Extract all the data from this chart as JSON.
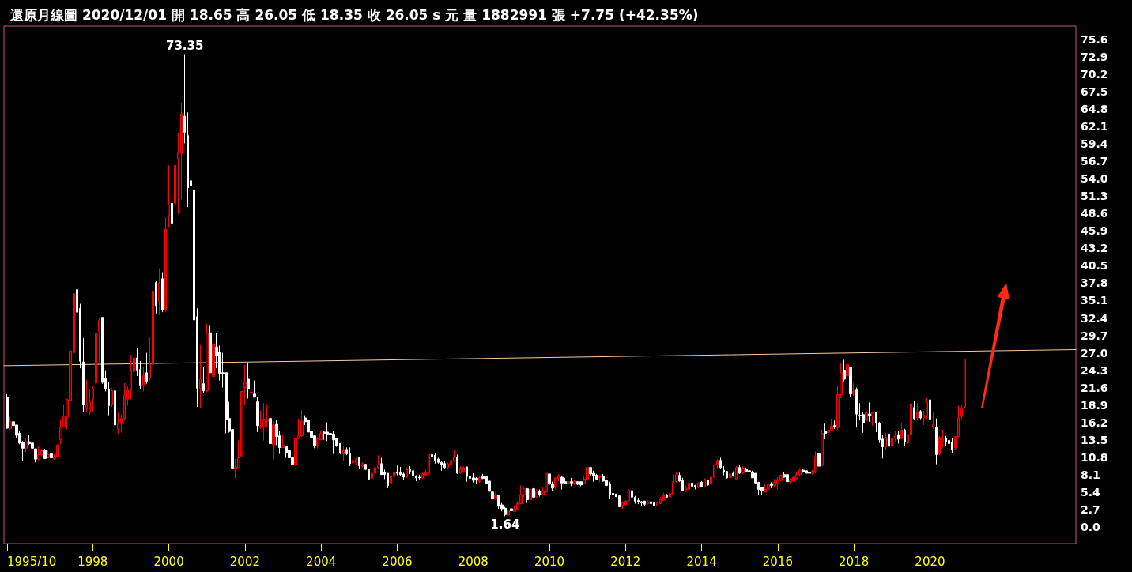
{
  "chart_data": {
    "type": "candlestick",
    "title": "還原月線圖 2020/12/01 開 18.65 高 26.05 低 18.35 收 26.05 s 元 量 1882991 張 +7.75 (+42.35%)",
    "x": [
      "1995-10",
      "1995-11",
      "1995-12",
      "1996-01",
      "1996-02",
      "1996-03",
      "1996-04",
      "1996-05",
      "1996-06",
      "1996-07",
      "1996-08",
      "1996-09",
      "1996-10",
      "1996-11",
      "1996-12",
      "1997-01",
      "1997-02",
      "1997-03",
      "1997-04",
      "1997-05",
      "1997-06",
      "1997-07",
      "1997-08",
      "1997-09",
      "1997-10",
      "1997-11",
      "1997-12",
      "1998-01",
      "1998-02",
      "1998-03",
      "1998-04",
      "1998-05",
      "1998-06",
      "1998-07",
      "1998-08",
      "1998-09",
      "1998-10",
      "1998-11",
      "1998-12",
      "1999-01",
      "1999-02",
      "1999-03",
      "1999-04",
      "1999-05",
      "1999-06",
      "1999-07",
      "1999-08",
      "1999-09",
      "1999-10",
      "1999-11",
      "1999-12",
      "2000-01",
      "2000-02",
      "2000-03",
      "2000-04",
      "2000-05",
      "2000-06",
      "2000-07",
      "2000-08",
      "2000-09",
      "2000-10",
      "2000-11",
      "2000-12",
      "2001-01",
      "2001-02",
      "2001-03",
      "2001-04",
      "2001-05",
      "2001-06",
      "2001-07",
      "2001-08",
      "2001-09",
      "2001-10",
      "2001-11",
      "2001-12",
      "2002-01",
      "2002-02",
      "2002-03",
      "2002-04",
      "2002-05",
      "2002-06",
      "2002-07",
      "2002-08",
      "2002-09",
      "2002-10",
      "2002-11",
      "2002-12",
      "2003-01",
      "2003-02",
      "2003-03",
      "2003-04",
      "2003-05",
      "2003-06",
      "2003-07",
      "2003-08",
      "2003-09",
      "2003-10",
      "2003-11",
      "2003-12",
      "2004-01",
      "2004-02",
      "2004-03",
      "2004-04",
      "2004-05",
      "2004-06",
      "2004-07",
      "2004-08",
      "2004-09",
      "2004-10",
      "2004-11",
      "2004-12",
      "2005-01",
      "2005-02",
      "2005-03",
      "2005-04",
      "2005-05",
      "2005-06",
      "2005-07",
      "2005-08",
      "2005-09",
      "2005-10",
      "2005-11",
      "2005-12",
      "2006-01",
      "2006-02",
      "2006-03",
      "2006-04",
      "2006-05",
      "2006-06",
      "2006-07",
      "2006-08",
      "2006-09",
      "2006-10",
      "2006-11",
      "2006-12",
      "2007-01",
      "2007-02",
      "2007-03",
      "2007-04",
      "2007-05",
      "2007-06",
      "2007-07",
      "2007-08",
      "2007-09",
      "2007-10",
      "2007-11",
      "2007-12",
      "2008-01",
      "2008-02",
      "2008-03",
      "2008-04",
      "2008-05",
      "2008-06",
      "2008-07",
      "2008-08",
      "2008-09",
      "2008-10",
      "2008-11",
      "2008-12",
      "2009-01",
      "2009-02",
      "2009-03",
      "2009-04",
      "2009-05",
      "2009-06",
      "2009-07",
      "2009-08",
      "2009-09",
      "2009-10",
      "2009-11",
      "2009-12",
      "2010-01",
      "2010-02",
      "2010-03",
      "2010-04",
      "2010-05",
      "2010-06",
      "2010-07",
      "2010-08",
      "2010-09",
      "2010-10",
      "2010-11",
      "2010-12",
      "2011-01",
      "2011-02",
      "2011-03",
      "2011-04",
      "2011-05",
      "2011-06",
      "2011-07",
      "2011-08",
      "2011-09",
      "2011-10",
      "2011-11",
      "2011-12",
      "2012-01",
      "2012-02",
      "2012-03",
      "2012-04",
      "2012-05",
      "2012-06",
      "2012-07",
      "2012-08",
      "2012-09",
      "2012-10",
      "2012-11",
      "2012-12",
      "2013-01",
      "2013-02",
      "2013-03",
      "2013-04",
      "2013-05",
      "2013-06",
      "2013-07",
      "2013-08",
      "2013-09",
      "2013-10",
      "2013-11",
      "2013-12",
      "2014-01",
      "2014-02",
      "2014-03",
      "2014-04",
      "2014-05",
      "2014-06",
      "2014-07",
      "2014-08",
      "2014-09",
      "2014-10",
      "2014-11",
      "2014-12",
      "2015-01",
      "2015-02",
      "2015-03",
      "2015-04",
      "2015-05",
      "2015-06",
      "2015-07",
      "2015-08",
      "2015-09",
      "2015-10",
      "2015-11",
      "2015-12",
      "2016-01",
      "2016-02",
      "2016-03",
      "2016-04",
      "2016-05",
      "2016-06",
      "2016-07",
      "2016-08",
      "2016-09",
      "2016-10",
      "2016-11",
      "2016-12",
      "2017-01",
      "2017-02",
      "2017-03",
      "2017-04",
      "2017-05",
      "2017-06",
      "2017-07",
      "2017-08",
      "2017-09",
      "2017-10",
      "2017-11",
      "2017-12",
      "2018-01",
      "2018-02",
      "2018-03",
      "2018-04",
      "2018-05",
      "2018-06",
      "2018-07",
      "2018-08",
      "2018-09",
      "2018-10",
      "2018-11",
      "2018-12",
      "2019-01",
      "2019-02",
      "2019-03",
      "2019-04",
      "2019-05",
      "2019-06",
      "2019-07",
      "2019-08",
      "2019-09",
      "2019-10",
      "2019-11",
      "2019-12",
      "2020-01",
      "2020-02",
      "2020-03",
      "2020-04",
      "2020-05",
      "2020-06",
      "2020-07",
      "2020-08",
      "2020-09",
      "2020-10",
      "2020-11",
      "2020-12"
    ],
    "ohlc": [
      [
        20.1,
        20.6,
        15.2,
        15.3
      ],
      [
        15.2,
        17.1,
        15.1,
        16.3
      ],
      [
        16.3,
        16.5,
        15.4,
        15.7
      ],
      [
        15.8,
        15.8,
        13.7,
        14.2
      ],
      [
        14.5,
        14.8,
        12.8,
        13.0
      ],
      [
        13.1,
        13.3,
        10.2,
        12.2
      ],
      [
        12.2,
        13.7,
        11.6,
        13.2
      ],
      [
        13.2,
        14.3,
        12.7,
        12.9
      ],
      [
        13.0,
        13.6,
        12.1,
        12.2
      ],
      [
        12.1,
        12.1,
        10.0,
        10.5
      ],
      [
        10.5,
        12.5,
        10.3,
        11.2
      ],
      [
        11.2,
        12.1,
        10.9,
        11.8
      ],
      [
        11.9,
        12.1,
        10.5,
        10.6
      ],
      [
        10.7,
        12.0,
        10.7,
        11.2
      ],
      [
        11.3,
        11.4,
        10.7,
        10.7
      ],
      [
        10.6,
        11.3,
        10.4,
        10.9
      ],
      [
        10.9,
        12.8,
        10.8,
        12.7
      ],
      [
        13.5,
        16.7,
        12.8,
        15.4
      ],
      [
        15.6,
        19.0,
        15.4,
        17.2
      ],
      [
        17.0,
        19.9,
        15.1,
        19.7
      ],
      [
        19.6,
        30.7,
        19.4,
        27.3
      ],
      [
        27.0,
        38.2,
        24.8,
        36.2
      ],
      [
        36.8,
        40.7,
        31.6,
        33.3
      ],
      [
        33.9,
        34.6,
        24.6,
        25.7
      ],
      [
        25.6,
        29.3,
        17.8,
        18.9
      ],
      [
        18.3,
        22.8,
        17.8,
        19.0
      ],
      [
        17.7,
        21.4,
        17.4,
        19.4
      ],
      [
        19.8,
        21.8,
        17.9,
        21.4
      ],
      [
        22.3,
        31.8,
        22.1,
        30.0
      ],
      [
        30.3,
        32.5,
        25.4,
        32.0
      ],
      [
        32.5,
        32.5,
        22.2,
        22.4
      ],
      [
        23.0,
        24.3,
        21.0,
        21.4
      ],
      [
        21.4,
        22.4,
        17.3,
        18.8
      ],
      [
        19.0,
        21.5,
        18.6,
        21.1
      ],
      [
        21.1,
        21.8,
        15.8,
        15.8
      ],
      [
        15.2,
        17.9,
        14.5,
        16.1
      ],
      [
        16.0,
        17.4,
        14.6,
        16.8
      ],
      [
        16.8,
        22.3,
        16.7,
        20.4
      ],
      [
        19.8,
        21.9,
        18.8,
        21.2
      ],
      [
        21.2,
        26.7,
        19.8,
        24.3
      ],
      [
        24.1,
        26.7,
        22.1,
        26.2
      ],
      [
        26.2,
        27.7,
        23.4,
        24.3
      ],
      [
        24.4,
        25.7,
        21.4,
        22.0
      ],
      [
        22.0,
        24.9,
        21.0,
        23.5
      ],
      [
        23.9,
        27.0,
        22.2,
        22.6
      ],
      [
        23.0,
        29.4,
        22.7,
        25.2
      ],
      [
        25.2,
        38.5,
        24.1,
        36.6
      ],
      [
        37.9,
        38.1,
        33.1,
        34.3
      ],
      [
        35.0,
        40.1,
        32.8,
        37.8
      ],
      [
        38.5,
        39.5,
        33.3,
        33.7
      ],
      [
        33.7,
        48.0,
        33.3,
        46.2
      ],
      [
        48.3,
        56.1,
        46.5,
        50.0
      ],
      [
        50.2,
        51.8,
        43.3,
        47.1
      ],
      [
        50.2,
        60.5,
        42.7,
        56.1
      ],
      [
        57.1,
        61.2,
        48.6,
        58.0
      ],
      [
        57.9,
        65.8,
        50.8,
        64.1
      ],
      [
        63.7,
        73.35,
        59.5,
        61.2
      ],
      [
        60.7,
        64.3,
        49.6,
        52.6
      ],
      [
        53.7,
        62.0,
        48.0,
        52.9
      ],
      [
        52.3,
        52.7,
        30.7,
        32.1
      ],
      [
        32.6,
        33.9,
        18.6,
        21.5
      ],
      [
        21.5,
        28.2,
        18.5,
        22.9
      ],
      [
        22.2,
        24.8,
        20.7,
        21.1
      ],
      [
        21.1,
        31.5,
        20.9,
        30.1
      ],
      [
        30.1,
        31.3,
        23.9,
        23.9
      ],
      [
        23.3,
        30.7,
        22.7,
        28.3
      ],
      [
        27.9,
        30.1,
        24.6,
        26.5
      ],
      [
        27.1,
        28.1,
        22.7,
        23.8
      ],
      [
        23.9,
        27.0,
        21.6,
        23.7
      ],
      [
        23.9,
        23.9,
        14.5,
        16.7
      ],
      [
        16.8,
        19.4,
        14.6,
        14.8
      ],
      [
        15.1,
        15.3,
        7.8,
        9.1
      ],
      [
        9.0,
        10.5,
        7.5,
        9.2
      ],
      [
        9.2,
        13.4,
        9.2,
        10.7
      ],
      [
        11.0,
        21.0,
        10.8,
        21.0
      ],
      [
        21.6,
        25.1,
        18.9,
        22.4
      ],
      [
        22.9,
        25.5,
        19.9,
        21.4
      ],
      [
        20.8,
        25.0,
        19.9,
        20.9
      ],
      [
        20.6,
        22.7,
        20.1,
        20.1
      ],
      [
        19.4,
        20.1,
        14.7,
        15.7
      ],
      [
        15.4,
        18.0,
        15.2,
        15.6
      ],
      [
        15.5,
        19.2,
        13.4,
        16.7
      ],
      [
        16.4,
        19.0,
        15.5,
        16.7
      ],
      [
        16.8,
        17.5,
        11.4,
        12.9
      ],
      [
        12.7,
        16.4,
        10.5,
        15.8
      ],
      [
        15.9,
        16.5,
        12.7,
        14.0
      ],
      [
        14.1,
        14.9,
        11.3,
        12.3
      ],
      [
        12.3,
        14.3,
        12.2,
        12.6
      ],
      [
        12.5,
        12.6,
        10.7,
        11.5
      ],
      [
        11.8,
        12.3,
        10.5,
        10.7
      ],
      [
        10.7,
        10.7,
        9.7,
        9.7
      ],
      [
        9.6,
        13.8,
        9.5,
        13.7
      ],
      [
        13.8,
        16.8,
        13.6,
        14.1
      ],
      [
        14.1,
        18.1,
        14.0,
        16.4
      ],
      [
        16.9,
        17.3,
        15.8,
        16.3
      ],
      [
        16.5,
        17.0,
        14.5,
        14.7
      ],
      [
        14.8,
        15.0,
        13.7,
        13.9
      ],
      [
        14.1,
        14.3,
        12.2,
        12.6
      ],
      [
        12.6,
        13.9,
        12.2,
        13.6
      ],
      [
        13.5,
        15.0,
        13.5,
        14.5
      ],
      [
        14.7,
        14.8,
        13.5,
        14.5
      ],
      [
        14.7,
        16.2,
        13.3,
        14.4
      ],
      [
        14.5,
        18.6,
        14.2,
        14.3
      ],
      [
        14.4,
        14.9,
        11.3,
        13.5
      ],
      [
        13.7,
        13.8,
        12.4,
        12.6
      ],
      [
        12.9,
        13.0,
        11.3,
        11.5
      ],
      [
        11.3,
        12.5,
        10.2,
        11.8
      ],
      [
        12.0,
        12.3,
        11.1,
        11.3
      ],
      [
        11.4,
        12.3,
        9.4,
        9.8
      ],
      [
        9.9,
        11.2,
        9.6,
        10.3
      ],
      [
        9.9,
        10.7,
        9.6,
        10.5
      ],
      [
        10.7,
        10.7,
        9.0,
        9.5
      ],
      [
        9.4,
        10.0,
        9.2,
        9.7
      ],
      [
        9.7,
        9.7,
        8.9,
        8.9
      ],
      [
        9.0,
        9.0,
        7.3,
        7.4
      ],
      [
        7.5,
        8.6,
        7.4,
        8.3
      ],
      [
        8.3,
        10.0,
        8.2,
        9.2
      ],
      [
        9.2,
        11.1,
        9.0,
        9.6
      ],
      [
        9.8,
        10.7,
        8.1,
        8.1
      ],
      [
        8.5,
        8.9,
        7.4,
        8.1
      ],
      [
        8.3,
        8.3,
        6.0,
        6.4
      ],
      [
        6.8,
        8.0,
        6.7,
        7.9
      ],
      [
        7.8,
        8.8,
        7.7,
        8.5
      ],
      [
        8.5,
        9.5,
        8.0,
        8.3
      ],
      [
        8.4,
        9.3,
        7.9,
        8.1
      ],
      [
        8.2,
        8.4,
        7.3,
        7.7
      ],
      [
        7.8,
        9.2,
        7.6,
        8.9
      ],
      [
        8.9,
        9.4,
        8.2,
        8.6
      ],
      [
        8.7,
        8.9,
        7.3,
        7.9
      ],
      [
        7.9,
        8.0,
        7.1,
        7.6
      ],
      [
        7.7,
        8.1,
        7.3,
        7.6
      ],
      [
        7.6,
        8.4,
        7.4,
        8.2
      ],
      [
        8.0,
        8.9,
        7.9,
        8.4
      ],
      [
        8.3,
        11.2,
        8.1,
        11.2
      ],
      [
        11.2,
        11.3,
        9.8,
        10.9
      ],
      [
        11.1,
        11.4,
        9.8,
        10.3
      ],
      [
        10.5,
        10.7,
        9.8,
        10.0
      ],
      [
        10.0,
        10.2,
        8.7,
        9.6
      ],
      [
        9.8,
        10.2,
        9.0,
        9.2
      ],
      [
        9.2,
        10.0,
        8.9,
        9.8
      ],
      [
        9.7,
        10.9,
        9.2,
        10.3
      ],
      [
        10.2,
        12.0,
        10.0,
        10.8
      ],
      [
        10.8,
        11.2,
        8.2,
        8.3
      ],
      [
        8.3,
        9.4,
        8.3,
        9.1
      ],
      [
        8.6,
        9.4,
        8.4,
        9.2
      ],
      [
        9.3,
        9.3,
        7.0,
        7.8
      ],
      [
        7.9,
        8.3,
        6.5,
        7.5
      ],
      [
        7.6,
        8.3,
        6.9,
        7.2
      ],
      [
        7.5,
        7.7,
        6.7,
        7.3
      ],
      [
        7.0,
        8.0,
        6.8,
        7.6
      ],
      [
        7.8,
        8.2,
        7.4,
        7.5
      ],
      [
        7.8,
        7.8,
        6.6,
        6.7
      ],
      [
        7.1,
        7.2,
        5.3,
        5.5
      ],
      [
        5.4,
        5.8,
        4.1,
        4.3
      ],
      [
        4.3,
        5.3,
        4.2,
        4.9
      ],
      [
        4.9,
        4.9,
        2.8,
        3.2
      ],
      [
        3.4,
        3.7,
        2.4,
        2.8
      ],
      [
        2.9,
        3.1,
        1.64,
        1.9
      ],
      [
        1.8,
        2.8,
        1.7,
        2.6
      ],
      [
        2.8,
        2.8,
        2.3,
        2.5
      ],
      [
        2.4,
        3.3,
        2.3,
        2.8
      ],
      [
        2.7,
        4.0,
        2.6,
        3.6
      ],
      [
        3.6,
        6.4,
        3.5,
        5.0
      ],
      [
        5.0,
        6.3,
        4.6,
        5.9
      ],
      [
        5.9,
        6.0,
        3.7,
        4.2
      ],
      [
        4.2,
        6.0,
        4.1,
        5.8
      ],
      [
        5.9,
        6.0,
        4.5,
        4.6
      ],
      [
        4.6,
        5.8,
        4.5,
        5.6
      ],
      [
        5.5,
        5.8,
        4.7,
        5.0
      ],
      [
        5.0,
        6.2,
        5.0,
        5.5
      ],
      [
        5.4,
        8.3,
        5.3,
        8.3
      ],
      [
        8.2,
        8.4,
        6.3,
        6.6
      ],
      [
        6.7,
        7.0,
        5.5,
        6.0
      ],
      [
        6.2,
        7.7,
        5.8,
        7.6
      ],
      [
        7.6,
        8.2,
        7.1,
        7.8
      ],
      [
        7.7,
        7.8,
        5.8,
        6.8
      ],
      [
        7.0,
        7.6,
        6.6,
        6.7
      ],
      [
        6.8,
        7.3,
        6.6,
        7.0
      ],
      [
        7.0,
        7.6,
        6.3,
        6.8
      ],
      [
        6.7,
        7.3,
        6.5,
        7.1
      ],
      [
        7.0,
        7.0,
        6.5,
        6.6
      ],
      [
        7.0,
        7.0,
        6.3,
        6.5
      ],
      [
        6.7,
        8.0,
        6.6,
        7.4
      ],
      [
        7.3,
        9.4,
        7.1,
        9.2
      ],
      [
        9.2,
        9.3,
        8.0,
        8.2
      ],
      [
        8.3,
        8.7,
        7.0,
        7.9
      ],
      [
        8.0,
        8.2,
        7.2,
        7.4
      ],
      [
        7.7,
        8.0,
        6.9,
        7.8
      ],
      [
        7.9,
        8.2,
        7.0,
        7.1
      ],
      [
        7.2,
        7.6,
        6.2,
        6.4
      ],
      [
        6.7,
        7.0,
        4.3,
        5.0
      ],
      [
        5.2,
        5.6,
        4.6,
        5.0
      ],
      [
        5.1,
        5.1,
        4.6,
        4.7
      ],
      [
        4.8,
        4.9,
        3.1,
        3.1
      ],
      [
        3.3,
        3.9,
        2.8,
        3.7
      ],
      [
        3.4,
        4.1,
        3.3,
        4.0
      ],
      [
        4.0,
        5.8,
        4.0,
        5.6
      ],
      [
        5.6,
        5.6,
        4.2,
        4.6
      ],
      [
        4.6,
        4.8,
        3.6,
        4.0
      ],
      [
        4.1,
        4.5,
        3.5,
        3.9
      ],
      [
        3.9,
        4.0,
        3.3,
        3.7
      ],
      [
        4.0,
        4.0,
        3.3,
        3.5
      ],
      [
        3.6,
        4.1,
        3.4,
        3.9
      ],
      [
        3.9,
        4.0,
        3.5,
        3.6
      ],
      [
        3.7,
        3.7,
        3.2,
        3.3
      ],
      [
        3.3,
        3.8,
        3.2,
        3.7
      ],
      [
        3.6,
        4.6,
        3.6,
        4.3
      ],
      [
        4.1,
        5.3,
        4.1,
        4.9
      ],
      [
        4.9,
        5.1,
        4.5,
        4.6
      ],
      [
        4.6,
        5.4,
        4.5,
        5.2
      ],
      [
        5.1,
        8.1,
        5.1,
        7.0
      ],
      [
        7.0,
        8.5,
        6.9,
        8.1
      ],
      [
        8.0,
        8.4,
        7.0,
        7.1
      ],
      [
        7.2,
        7.6,
        5.6,
        5.6
      ],
      [
        5.6,
        6.4,
        5.4,
        6.0
      ],
      [
        5.8,
        7.0,
        5.8,
        6.8
      ],
      [
        6.8,
        7.3,
        6.1,
        6.3
      ],
      [
        6.4,
        6.5,
        5.8,
        6.2
      ],
      [
        6.2,
        6.9,
        6.0,
        6.8
      ],
      [
        6.9,
        7.1,
        6.1,
        6.2
      ],
      [
        6.2,
        7.5,
        6.1,
        7.4
      ],
      [
        7.2,
        7.3,
        6.4,
        6.5
      ],
      [
        6.7,
        7.7,
        6.6,
        7.7
      ],
      [
        7.7,
        9.7,
        7.6,
        9.6
      ],
      [
        9.6,
        10.5,
        9.1,
        10.3
      ],
      [
        10.3,
        10.7,
        9.0,
        9.2
      ],
      [
        8.8,
        9.4,
        8.0,
        8.5
      ],
      [
        8.6,
        8.6,
        7.5,
        7.6
      ],
      [
        7.6,
        8.3,
        6.6,
        8.2
      ],
      [
        8.3,
        8.6,
        7.8,
        8.0
      ],
      [
        7.4,
        9.4,
        7.3,
        9.2
      ],
      [
        9.2,
        9.6,
        8.2,
        8.3
      ],
      [
        8.4,
        9.4,
        8.2,
        9.1
      ],
      [
        9.0,
        9.2,
        8.5,
        8.6
      ],
      [
        8.7,
        9.2,
        8.2,
        8.5
      ],
      [
        8.5,
        8.7,
        7.6,
        7.6
      ],
      [
        8.3,
        8.3,
        6.7,
        6.8
      ],
      [
        6.9,
        7.0,
        4.9,
        5.8
      ],
      [
        6.1,
        6.1,
        5.0,
        5.6
      ],
      [
        5.4,
        6.6,
        5.4,
        5.8
      ],
      [
        5.8,
        6.9,
        5.7,
        6.6
      ],
      [
        6.7,
        6.9,
        6.0,
        6.4
      ],
      [
        6.4,
        7.4,
        6.2,
        6.9
      ],
      [
        6.7,
        7.7,
        5.8,
        7.3
      ],
      [
        7.2,
        8.1,
        7.1,
        8.0
      ],
      [
        8.1,
        8.5,
        7.6,
        7.7
      ],
      [
        8.1,
        8.2,
        6.8,
        7.0
      ],
      [
        7.0,
        7.5,
        6.8,
        7.3
      ],
      [
        7.1,
        7.9,
        6.9,
        7.7
      ],
      [
        7.5,
        8.5,
        7.3,
        8.1
      ],
      [
        8.1,
        9.1,
        7.9,
        8.8
      ],
      [
        8.8,
        9.0,
        8.4,
        8.5
      ],
      [
        8.7,
        9.0,
        8.1,
        8.3
      ],
      [
        8.5,
        8.8,
        8.0,
        8.3
      ],
      [
        8.3,
        8.8,
        8.1,
        8.6
      ],
      [
        8.5,
        11.7,
        8.3,
        10.9
      ],
      [
        11.4,
        11.5,
        9.4,
        9.4
      ],
      [
        9.5,
        15.0,
        9.4,
        14.5
      ],
      [
        14.8,
        16.0,
        13.6,
        14.5
      ],
      [
        14.6,
        15.6,
        13.4,
        15.0
      ],
      [
        15.0,
        16.8,
        14.9,
        15.6
      ],
      [
        15.7,
        16.5,
        15.2,
        15.5
      ],
      [
        15.4,
        21.8,
        15.0,
        20.5
      ],
      [
        20.5,
        25.5,
        19.9,
        23.9
      ],
      [
        24.3,
        25.9,
        22.6,
        22.9
      ],
      [
        23.4,
        26.8,
        22.6,
        25.2
      ],
      [
        24.8,
        24.8,
        20.2,
        20.6
      ],
      [
        20.6,
        22.3,
        20.3,
        21.0
      ],
      [
        21.2,
        21.6,
        15.4,
        17.5
      ],
      [
        17.3,
        19.2,
        16.5,
        17.2
      ],
      [
        17.4,
        17.8,
        14.6,
        16.1
      ],
      [
        16.5,
        18.8,
        15.4,
        17.7
      ],
      [
        17.5,
        19.3,
        16.3,
        17.2
      ],
      [
        17.2,
        17.9,
        15.7,
        17.7
      ],
      [
        17.7,
        17.7,
        14.7,
        16.1
      ],
      [
        16.1,
        16.3,
        13.0,
        13.5
      ],
      [
        13.6,
        14.2,
        10.6,
        12.4
      ],
      [
        12.4,
        14.6,
        12.0,
        13.9
      ],
      [
        14.4,
        15.0,
        12.4,
        12.5
      ],
      [
        12.6,
        14.1,
        11.4,
        13.7
      ],
      [
        13.7,
        14.8,
        13.2,
        14.3
      ],
      [
        14.3,
        14.8,
        12.9,
        13.6
      ],
      [
        13.7,
        16.1,
        13.6,
        15.0
      ],
      [
        15.0,
        15.2,
        12.5,
        13.2
      ],
      [
        13.0,
        14.4,
        12.9,
        14.2
      ],
      [
        14.3,
        20.3,
        14.1,
        19.1
      ],
      [
        18.5,
        19.5,
        16.5,
        16.8
      ],
      [
        16.9,
        19.2,
        16.5,
        17.8
      ],
      [
        17.9,
        18.1,
        16.7,
        16.9
      ],
      [
        16.9,
        18.0,
        15.8,
        17.3
      ],
      [
        17.2,
        20.0,
        16.7,
        19.3
      ],
      [
        19.7,
        20.5,
        16.2,
        16.7
      ],
      [
        15.5,
        17.9,
        15.2,
        15.9
      ],
      [
        15.4,
        16.8,
        9.7,
        11.2
      ],
      [
        11.3,
        14.1,
        11.1,
        13.9
      ],
      [
        13.2,
        15.1,
        12.3,
        13.6
      ],
      [
        13.8,
        14.1,
        12.6,
        13.2
      ],
      [
        13.4,
        14.2,
        12.6,
        12.9
      ],
      [
        13.1,
        13.7,
        11.4,
        12.0
      ],
      [
        12.2,
        14.1,
        11.9,
        14.0
      ],
      [
        14.0,
        18.8,
        13.9,
        16.9
      ],
      [
        17.1,
        19.0,
        16.7,
        18.3
      ],
      [
        18.65,
        26.05,
        18.35,
        26.05
      ]
    ],
    "series": [
      {
        "type": "line",
        "color": "#f7c9a0",
        "x": [
          "1995-09",
          "2023-11"
        ],
        "values": [
          25.0,
          27.5
        ]
      }
    ],
    "xlim": [
      "1995-09",
      "2023-11"
    ],
    "xticks": [
      {
        "value": "1995-10",
        "label": "1995/10"
      },
      "1998",
      "2000",
      "2002",
      "2004",
      "2006",
      "2008",
      "2010",
      "2012",
      "2014",
      "2016",
      "2018",
      "2020"
    ],
    "ylim": [
      -2.6,
      77.7
    ],
    "yticks": [
      {
        "value": 0,
        "label": "0.0"
      },
      2.7,
      5.4,
      8.1,
      10.8,
      13.5,
      16.2,
      18.9,
      21.6,
      24.3,
      {
        "value": 27,
        "label": "27.0"
      },
      29.7,
      32.4,
      35.1,
      37.8,
      40.5,
      43.2,
      45.9,
      48.6,
      51.3,
      {
        "value": 54,
        "label": "54.0"
      },
      56.7,
      59.4,
      62.1,
      64.8,
      67.5,
      70.2,
      72.9,
      75.6
    ],
    "annotations": [
      {
        "text": "73.35",
        "x": "2000-06",
        "y": 73.35
      },
      {
        "text": "1.64",
        "x": "2008-11",
        "y": 1.64
      }
    ],
    "grid": false,
    "marker": "none"
  }
}
